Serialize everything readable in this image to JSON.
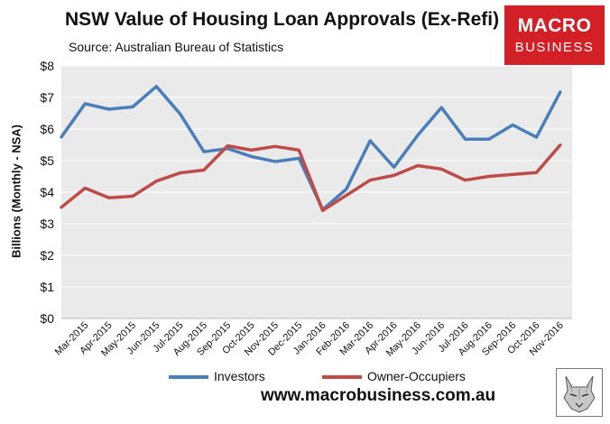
{
  "header": {
    "title": "NSW Value of Housing Loan Approvals (Ex-Refi)",
    "subtitle": "Source: Australian Bureau of Statistics"
  },
  "logo": {
    "line1": "MACRO",
    "line2": "BUSINESS",
    "color": "#d32027"
  },
  "footer": {
    "website": "www.macrobusiness.com.au",
    "badge_icon": "wolf-head-icon"
  },
  "chart_data": {
    "type": "line",
    "title": "NSW Value of Housing Loan Approvals (Ex-Refi)",
    "subtitle": "Source: Australian Bureau of Statistics",
    "xlabel": "",
    "ylabel": "Billions (Monthly - NSA)",
    "ylim": [
      0,
      8
    ],
    "yticks": [
      "$0",
      "$1",
      "$2",
      "$3",
      "$4",
      "$5",
      "$6",
      "$7",
      "$8"
    ],
    "grid": true,
    "legend_position": "bottom",
    "categories": [
      "Mar-2015",
      "Apr-2015",
      "May-2015",
      "Jun-2015",
      "Jul-2015",
      "Aug-2015",
      "Sep-2015",
      "Oct-2015",
      "Nov-2015",
      "Dec-2015",
      "Jan-2016",
      "Feb-2016",
      "Mar-2016",
      "Apr-2016",
      "May-2016",
      "Jun-2016",
      "Jul-2016",
      "Aug-2016",
      "Sep-2016",
      "Oct-2016",
      "Nov-2016"
    ],
    "series": [
      {
        "name": "Investors",
        "color": "#4a7ebb",
        "values": [
          6.8,
          6.63,
          6.7,
          7.35,
          6.48,
          5.28,
          5.38,
          5.13,
          4.97,
          5.07,
          3.45,
          4.1,
          5.63,
          4.79,
          5.8,
          6.68,
          5.68,
          5.68,
          6.13,
          5.74,
          7.17
        ],
        "start_value": 5.75
      },
      {
        "name": "Owner-Occupiers",
        "color": "#be4b48",
        "values": [
          4.13,
          3.82,
          3.87,
          4.35,
          4.61,
          4.7,
          5.47,
          5.33,
          5.45,
          5.33,
          3.42,
          3.9,
          4.38,
          4.53,
          4.84,
          4.73,
          4.38,
          4.5,
          4.56,
          4.62,
          5.49
        ],
        "start_value": 3.52
      }
    ]
  }
}
